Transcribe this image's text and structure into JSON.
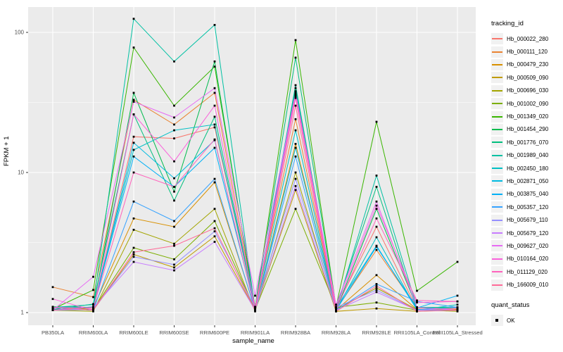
{
  "chart_data": {
    "type": "line",
    "xlabel": "sample_name",
    "ylabel": "FPKM + 1",
    "y_scale": "log10",
    "y_ticks": [
      1,
      10,
      100
    ],
    "y_minor_ticks": [
      3.162,
      31.623
    ],
    "ylim": [
      0.85,
      150
    ],
    "grid": "on",
    "legend_position": "right",
    "panel_bg": "#EBEBEB",
    "grid_color": "#FFFFFF",
    "point_color": "#000000",
    "tick_label_color": "#4D4D4D",
    "legend_title": "tracking_id",
    "quant_legend_title": "quant_status",
    "quant_status_label": "OK",
    "categories": [
      "PB350LA",
      "RRIM600LA",
      "RRIM600LE",
      "RRIM600SE",
      "RRIM600PE",
      "RRIM901LA",
      "RRIM928BA",
      "RRIM928LA",
      "RRIM928LE",
      "RRII105LA_Control",
      "RRII105LA_Stressed"
    ],
    "series": [
      {
        "name": "Hb_000022_280",
        "color": "#F8766D",
        "values": [
          1.05,
          1.06,
          18.0,
          17.5,
          21.0,
          1.08,
          35.0,
          1.08,
          4.1,
          1.06,
          1.05
        ]
      },
      {
        "name": "Hb_000111_120",
        "color": "#EA8331",
        "values": [
          1.52,
          1.29,
          33.0,
          22.0,
          37.0,
          1.1,
          24.0,
          1.05,
          2.8,
          1.08,
          1.06
        ]
      },
      {
        "name": "Hb_000479_230",
        "color": "#D89000",
        "values": [
          1.04,
          1.08,
          4.7,
          4.1,
          8.5,
          1.05,
          16.0,
          1.04,
          1.85,
          1.05,
          1.04
        ]
      },
      {
        "name": "Hb_000509_090",
        "color": "#C09B00",
        "values": [
          1.08,
          1.04,
          2.6,
          2.1,
          3.5,
          1.04,
          7.5,
          1.02,
          1.07,
          1.02,
          1.05
        ]
      },
      {
        "name": "Hb_000696_030",
        "color": "#A3A500",
        "values": [
          1.04,
          1.02,
          3.9,
          3.1,
          5.5,
          1.02,
          10.0,
          1.05,
          1.5,
          1.05,
          1.02
        ]
      },
      {
        "name": "Hb_001002_090",
        "color": "#7CAE00",
        "values": [
          1.09,
          1.05,
          2.9,
          2.4,
          4.5,
          1.05,
          5.5,
          1.09,
          1.18,
          1.04,
          1.09
        ]
      },
      {
        "name": "Hb_001349_020",
        "color": "#39B600",
        "values": [
          1.06,
          1.45,
          78.0,
          30.0,
          57.0,
          1.1,
          88.0,
          1.1,
          23.0,
          1.43,
          2.3
        ]
      },
      {
        "name": "Hb_001454_290",
        "color": "#00BB4E",
        "values": [
          1.1,
          1.09,
          37.0,
          7.3,
          62.0,
          1.04,
          40.0,
          1.04,
          5.5,
          1.09,
          1.08
        ]
      },
      {
        "name": "Hb_001776_070",
        "color": "#00BF7D",
        "values": [
          1.05,
          1.15,
          26.0,
          6.3,
          25.0,
          1.09,
          66.0,
          1.09,
          7.9,
          1.04,
          1.04
        ]
      },
      {
        "name": "Hb_001989_040",
        "color": "#00C1A3",
        "values": [
          1.09,
          1.14,
          125.0,
          62.0,
          113.0,
          1.05,
          42.0,
          1.05,
          9.5,
          1.09,
          1.09
        ]
      },
      {
        "name": "Hb_002450_180",
        "color": "#00BFC4",
        "values": [
          1.04,
          1.1,
          14.5,
          20.0,
          22.0,
          1.09,
          20.0,
          1.04,
          3.45,
          1.04,
          1.14
        ]
      },
      {
        "name": "Hb_002871_050",
        "color": "#00BAE0",
        "values": [
          1.08,
          1.04,
          16.3,
          9.1,
          17.0,
          1.04,
          15.0,
          1.08,
          3.0,
          1.05,
          1.08
        ]
      },
      {
        "name": "Hb_003875_040",
        "color": "#00B0F6",
        "values": [
          1.04,
          1.09,
          13.0,
          7.9,
          15.0,
          1.08,
          38.0,
          1.04,
          2.95,
          1.08,
          1.32
        ]
      },
      {
        "name": "Hb_005357_120",
        "color": "#35A2FF",
        "values": [
          1.08,
          1.04,
          6.2,
          4.5,
          9.0,
          1.04,
          13.0,
          1.04,
          1.6,
          1.2,
          1.09
        ]
      },
      {
        "name": "Hb_005679_110",
        "color": "#9590FF",
        "values": [
          1.04,
          1.05,
          2.5,
          2.2,
          3.8,
          1.09,
          9.0,
          1.09,
          1.45,
          1.04,
          1.04
        ]
      },
      {
        "name": "Hb_005679_120",
        "color": "#C77CFF",
        "values": [
          1.09,
          1.08,
          2.3,
          2.0,
          3.2,
          1.04,
          8.0,
          1.04,
          1.4,
          1.04,
          1.08
        ]
      },
      {
        "name": "Hb_009627_020",
        "color": "#E76BF3",
        "values": [
          1.04,
          1.8,
          32.0,
          24.7,
          40.0,
          1.32,
          37.0,
          1.14,
          6.2,
          1.09,
          1.04
        ]
      },
      {
        "name": "Hb_010164_020",
        "color": "#FA62DB",
        "values": [
          1.25,
          1.04,
          26.0,
          12.0,
          30.0,
          1.09,
          36.0,
          1.09,
          5.8,
          1.18,
          1.2
        ]
      },
      {
        "name": "Hb_011129_020",
        "color": "#FF62BC",
        "values": [
          1.04,
          1.09,
          10.0,
          7.9,
          17.2,
          1.04,
          34.0,
          1.04,
          4.7,
          1.22,
          1.2
        ]
      },
      {
        "name": "Hb_166009_010",
        "color": "#FF6A98",
        "values": [
          1.09,
          1.04,
          2.7,
          3.0,
          4.0,
          1.04,
          30.0,
          1.02,
          1.55,
          1.02,
          1.04
        ]
      }
    ]
  }
}
